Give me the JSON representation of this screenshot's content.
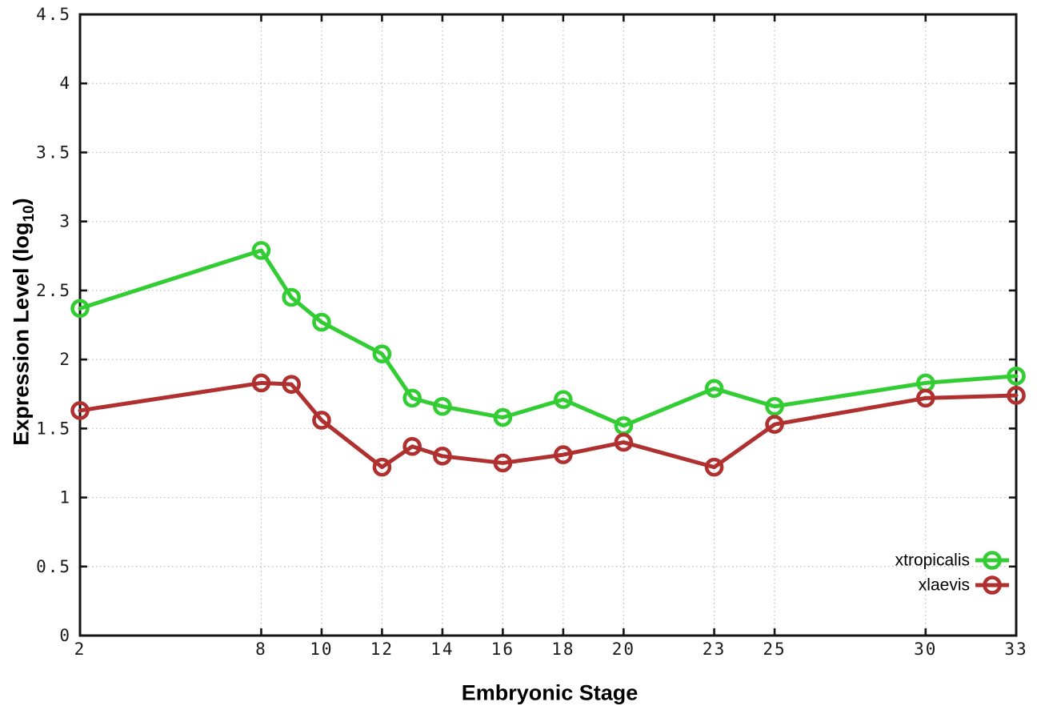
{
  "chart_data": {
    "type": "line",
    "title": "",
    "xlabel": "Embryonic Stage",
    "ylabel": "Expression Level (log10)",
    "ylabel_parts": {
      "base": "Expression Level (log",
      "sub": "10",
      "close": ")"
    },
    "x": [
      2,
      8,
      9,
      10,
      12,
      13,
      14,
      16,
      18,
      20,
      23,
      25,
      30,
      33
    ],
    "xticks": [
      2,
      8,
      10,
      12,
      14,
      16,
      18,
      20,
      23,
      25,
      30,
      33
    ],
    "yticks": [
      0,
      0.5,
      1,
      1.5,
      2,
      2.5,
      3,
      3.5,
      4,
      4.5
    ],
    "xlim": [
      2,
      33
    ],
    "ylim": [
      0,
      4.5
    ],
    "grid": true,
    "legend_position": "bottom-right",
    "series": [
      {
        "name": "xtropicalis",
        "color": "#32cd32",
        "values": [
          2.37,
          2.79,
          2.45,
          2.27,
          2.04,
          1.72,
          1.66,
          1.58,
          1.71,
          1.52,
          1.79,
          1.66,
          1.83,
          1.88
        ]
      },
      {
        "name": "xlaevis",
        "color": "#b03030",
        "values": [
          1.63,
          1.83,
          1.82,
          1.56,
          1.22,
          1.37,
          1.3,
          1.25,
          1.31,
          1.4,
          1.22,
          1.53,
          1.72,
          1.74
        ]
      }
    ],
    "styles": {
      "background": "#ffffff",
      "axis_color": "#141414",
      "grid_color": "#bdbdbd"
    }
  }
}
